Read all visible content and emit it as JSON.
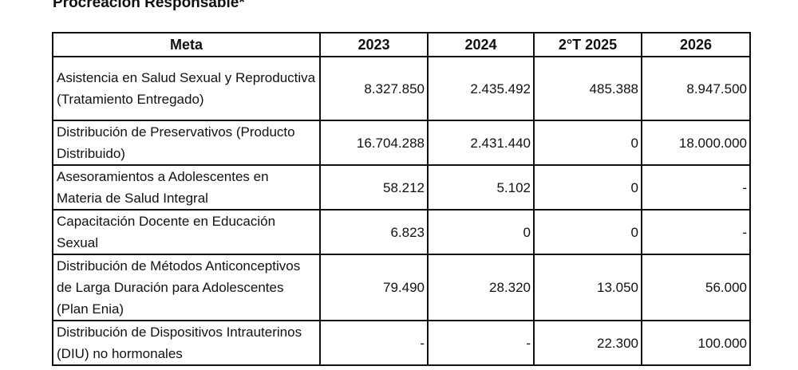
{
  "title": "Procreación Responsable*",
  "headers": [
    "Meta",
    "2023",
    "2024",
    "2°T 2025",
    "2026"
  ],
  "rows": [
    [
      "Asistencia en Salud Sexual y Reproductiva (Tratamiento Entregado)",
      "8.327.850",
      "2.435.492",
      "485.388",
      "8.947.500"
    ],
    [
      "Distribución de Preservativos (Producto Distribuido)",
      "16.704.288",
      "2.431.440",
      "0",
      "18.000.000"
    ],
    [
      "Asesoramientos a Adolescentes en Materia de Salud Integral",
      "58.212",
      "5.102",
      "0",
      "-"
    ],
    [
      "Capacitación Docente en Educación Sexual",
      "6.823",
      "0",
      "0",
      "-"
    ],
    [
      "Distribución de Métodos Anticonceptivos de Larga Duración para Adolescentes (Plan Enia)",
      "79.490",
      "28.320",
      "13.050",
      "56.000"
    ],
    [
      "Distribución de Dispositivos Intrauterinos (DIU) no hormonales",
      "-",
      "-",
      "22.300",
      "100.000"
    ]
  ]
}
